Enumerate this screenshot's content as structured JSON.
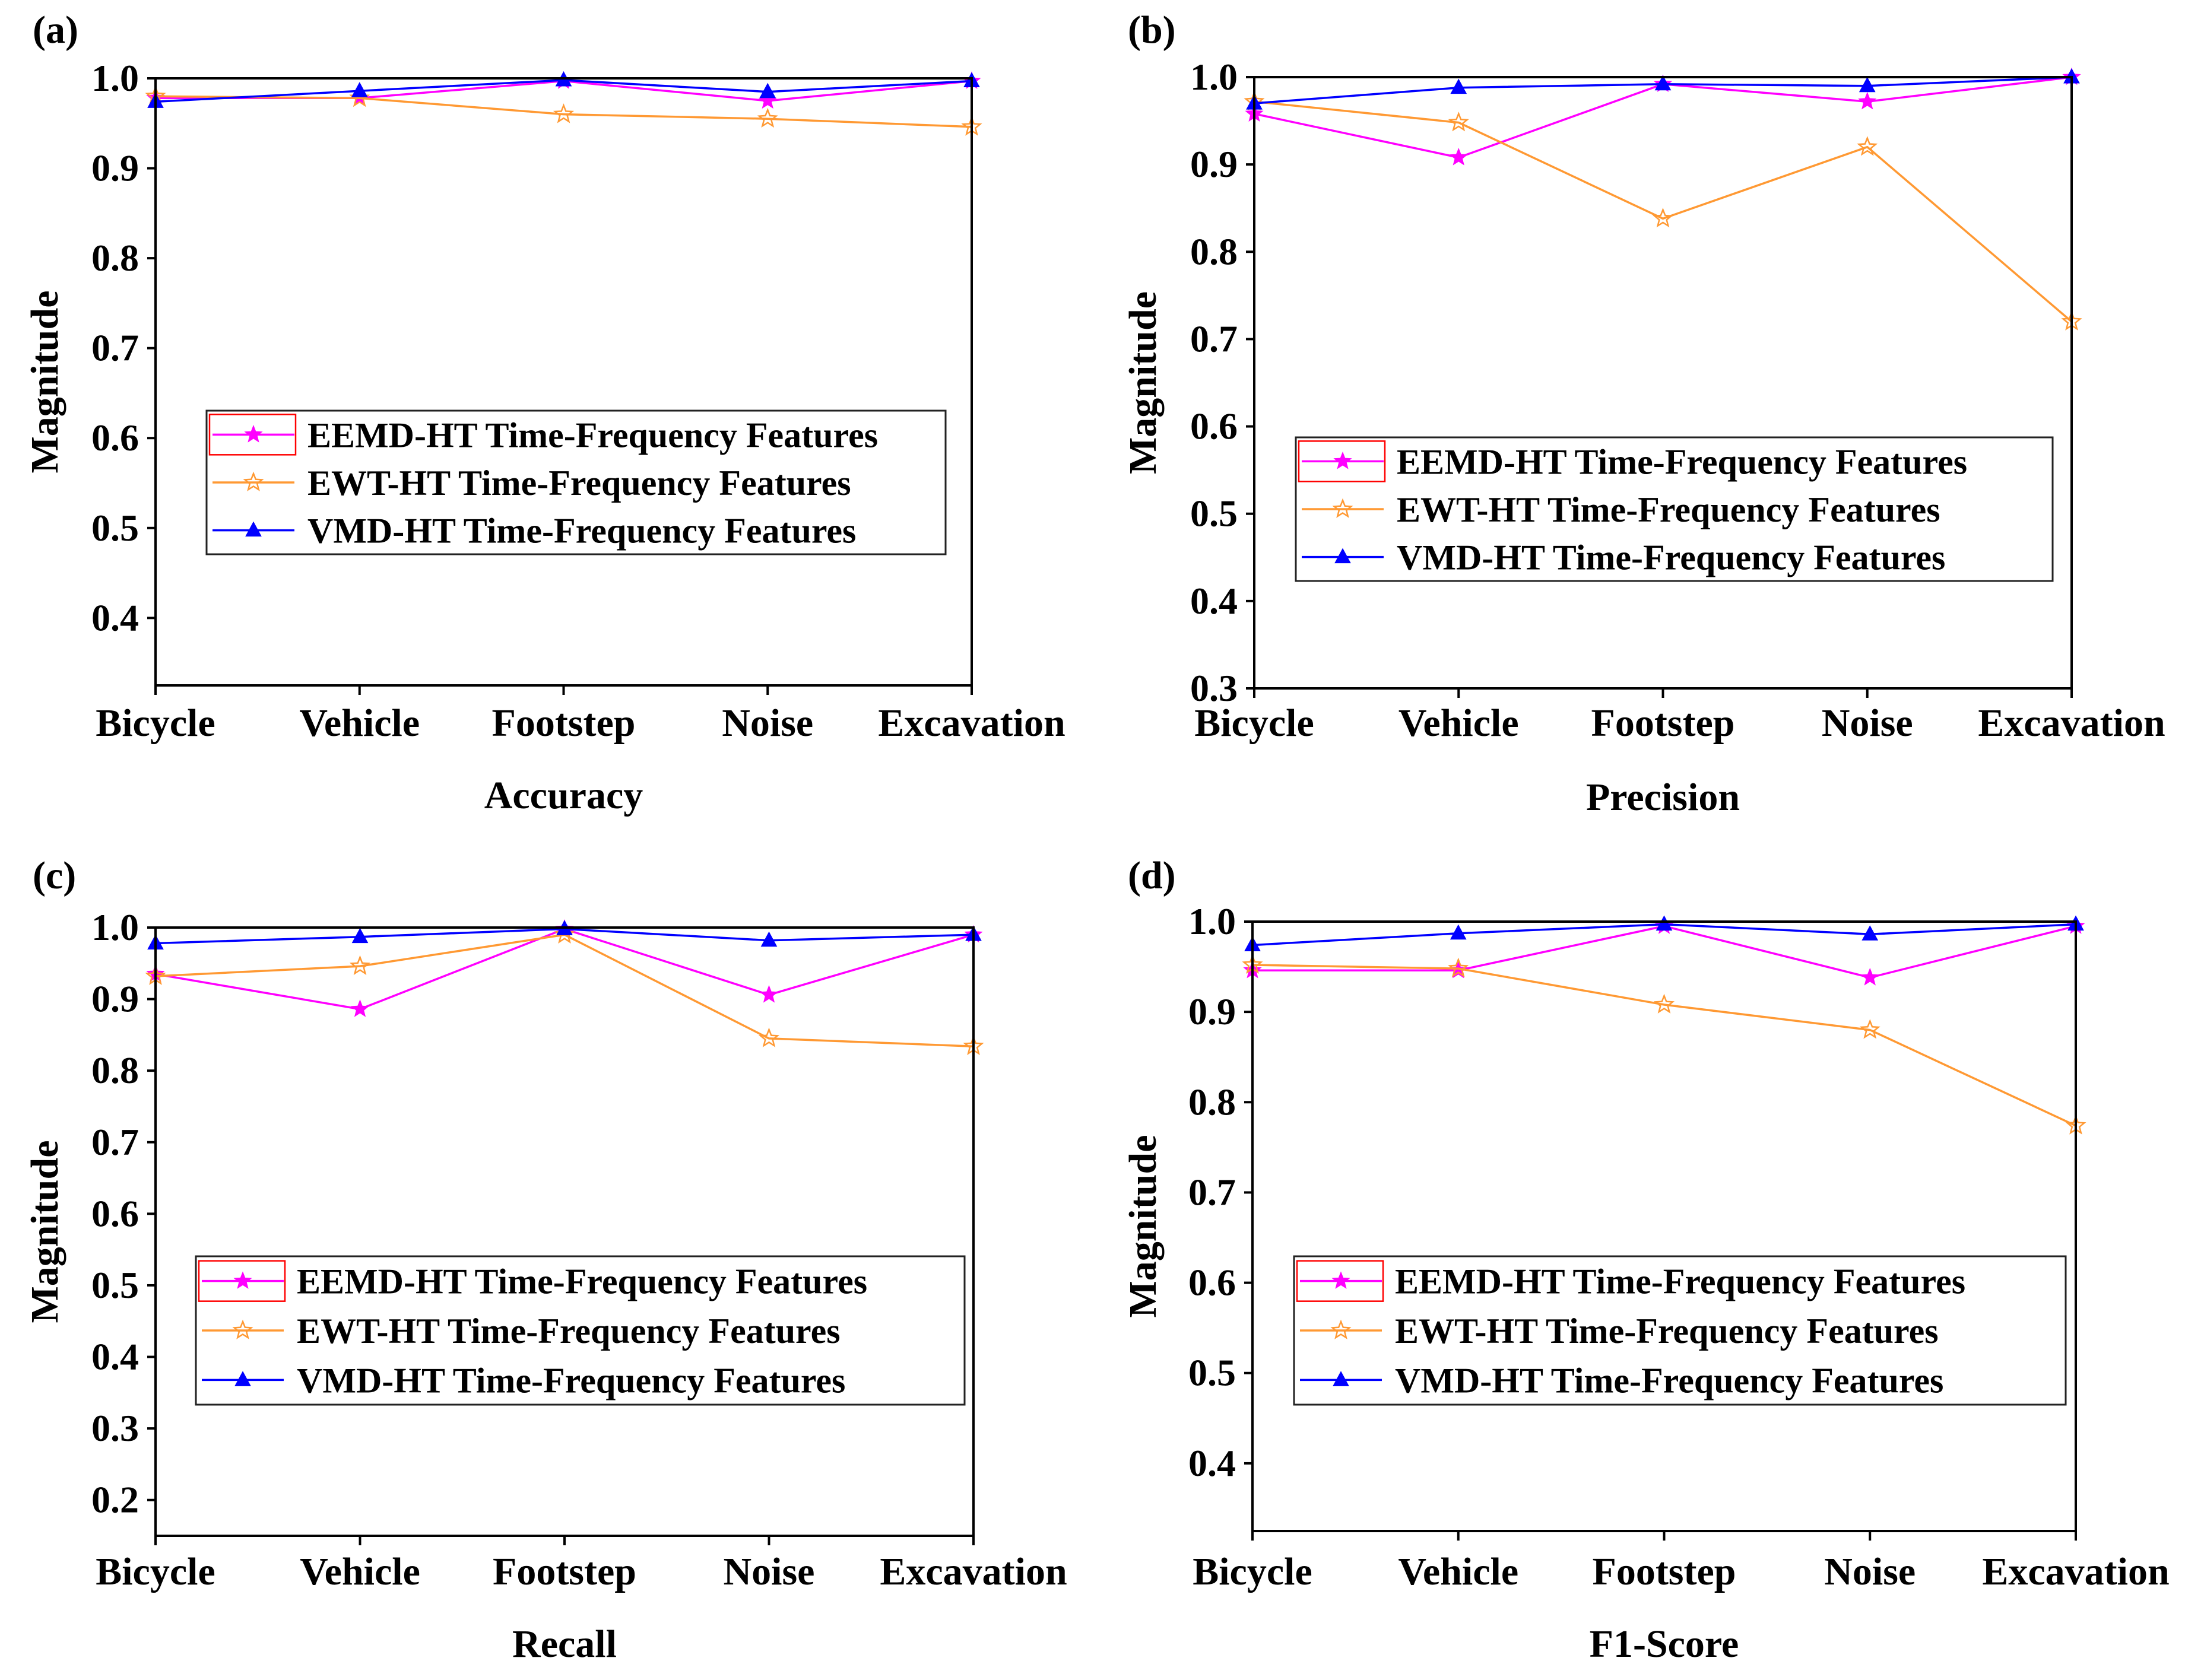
{
  "colors": {
    "eemd": "#ff00ff",
    "ewt": "#ff9933",
    "vmd": "#0000ff",
    "axis": "#000000",
    "legend_border": "#222222",
    "legend_swatch_border": "#ff0000"
  },
  "chart_data": [
    {
      "type": "line",
      "panel_label": "(a)",
      "xlabel": "Accuracy",
      "ylabel": "Magnitude",
      "categories": [
        "Bicycle",
        "Vehicle",
        "Footstep",
        "Noise",
        "Excavation"
      ],
      "ylim": [
        0.325,
        1.0
      ],
      "yticks": [
        0.4,
        0.5,
        0.6,
        0.7,
        0.8,
        0.9,
        1.0
      ],
      "ytick_labels": [
        "0.4",
        "0.5",
        "0.6",
        "0.7",
        "0.8",
        "0.9",
        "1.0"
      ],
      "legend": "center",
      "series": [
        {
          "name": "EEMD-HT Time-Frequency Features",
          "key": "eemd",
          "marker": "star",
          "values": [
            0.978,
            0.978,
            0.997,
            0.975,
            0.997
          ]
        },
        {
          "name": "EWT-HT Time-Frequency Features",
          "key": "ewt",
          "marker": "star-open",
          "values": [
            0.98,
            0.978,
            0.96,
            0.955,
            0.946
          ]
        },
        {
          "name": "VMD-HT Time-Frequency Features",
          "key": "vmd",
          "marker": "triangle",
          "values": [
            0.974,
            0.986,
            0.998,
            0.985,
            0.997
          ]
        }
      ]
    },
    {
      "type": "line",
      "panel_label": "(b)",
      "xlabel": "Precision",
      "ylabel": "Magnitude",
      "categories": [
        "Bicycle",
        "Vehicle",
        "Footstep",
        "Noise",
        "Excavation"
      ],
      "ylim": [
        0.3,
        1.0
      ],
      "yticks": [
        0.3,
        0.4,
        0.5,
        0.6,
        0.7,
        0.8,
        0.9,
        1.0
      ],
      "ytick_labels": [
        "0.3",
        "0.4",
        "0.5",
        "0.6",
        "0.7",
        "0.8",
        "0.9",
        "1.0"
      ],
      "legend": "lower-right",
      "series": [
        {
          "name": "EEMD-HT Time-Frequency Features",
          "key": "eemd",
          "marker": "star",
          "values": [
            0.958,
            0.908,
            0.992,
            0.972,
            1.0
          ]
        },
        {
          "name": "EWT-HT Time-Frequency Features",
          "key": "ewt",
          "marker": "star-open",
          "values": [
            0.972,
            0.948,
            0.838,
            0.92,
            0.72
          ]
        },
        {
          "name": "VMD-HT Time-Frequency Features",
          "key": "vmd",
          "marker": "triangle",
          "values": [
            0.97,
            0.988,
            0.992,
            0.99,
            1.0
          ]
        }
      ]
    },
    {
      "type": "line",
      "panel_label": "(c)",
      "xlabel": "Recall",
      "ylabel": "Magnitude",
      "categories": [
        "Bicycle",
        "Vehicle",
        "Footstep",
        "Noise",
        "Excavation"
      ],
      "ylim": [
        0.15,
        1.0
      ],
      "yticks": [
        0.2,
        0.3,
        0.4,
        0.5,
        0.6,
        0.7,
        0.8,
        0.9,
        1.0
      ],
      "ytick_labels": [
        "0.2",
        "0.3",
        "0.4",
        "0.5",
        "0.6",
        "0.7",
        "0.8",
        "0.9",
        "1.0"
      ],
      "legend": "center",
      "series": [
        {
          "name": "EEMD-HT Time-Frequency Features",
          "key": "eemd",
          "marker": "star",
          "values": [
            0.935,
            0.886,
            0.998,
            0.906,
            0.99
          ]
        },
        {
          "name": "EWT-HT Time-Frequency Features",
          "key": "ewt",
          "marker": "star-open",
          "values": [
            0.932,
            0.946,
            0.99,
            0.845,
            0.834
          ]
        },
        {
          "name": "VMD-HT Time-Frequency Features",
          "key": "vmd",
          "marker": "triangle",
          "values": [
            0.978,
            0.987,
            0.998,
            0.982,
            0.99
          ]
        }
      ]
    },
    {
      "type": "line",
      "panel_label": "(d)",
      "xlabel": "F1-Score",
      "ylabel": "Magnitude",
      "categories": [
        "Bicycle",
        "Vehicle",
        "Footstep",
        "Noise",
        "Excavation"
      ],
      "ylim": [
        0.325,
        1.0
      ],
      "yticks": [
        0.4,
        0.5,
        0.6,
        0.7,
        0.8,
        0.9,
        1.0
      ],
      "ytick_labels": [
        "0.4",
        "0.5",
        "0.6",
        "0.7",
        "0.8",
        "0.9",
        "1.0"
      ],
      "legend": "center",
      "series": [
        {
          "name": "EEMD-HT Time-Frequency Features",
          "key": "eemd",
          "marker": "star",
          "values": [
            0.946,
            0.946,
            0.995,
            0.938,
            0.995
          ]
        },
        {
          "name": "EWT-HT Time-Frequency Features",
          "key": "ewt",
          "marker": "star-open",
          "values": [
            0.952,
            0.948,
            0.908,
            0.88,
            0.774
          ]
        },
        {
          "name": "VMD-HT Time-Frequency Features",
          "key": "vmd",
          "marker": "triangle",
          "values": [
            0.974,
            0.987,
            0.997,
            0.986,
            0.997
          ]
        }
      ]
    }
  ]
}
